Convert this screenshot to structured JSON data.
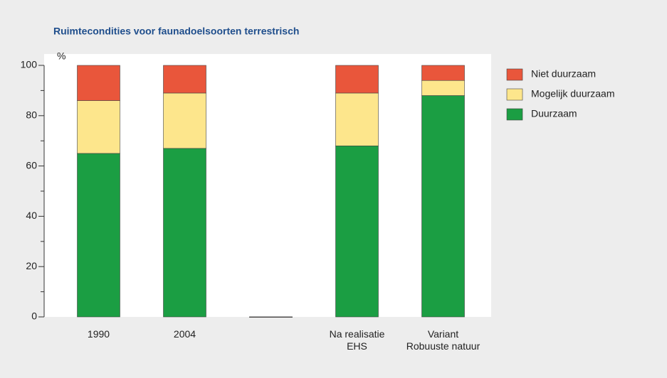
{
  "chart_data": {
    "type": "stacked_bar",
    "title": "Ruimtecondities voor faunadoelsoorten terrestrisch",
    "y_label": "%",
    "categories": [
      "1990",
      "2004",
      null,
      "Na realisatie\nEHS",
      "Variant\nRobuuste natuur"
    ],
    "series": [
      {
        "name": "Duurzaam",
        "color": "#1b9e43",
        "values": [
          65,
          67,
          0,
          68,
          88
        ]
      },
      {
        "name": "Mogelijk duurzaam",
        "color": "#fde68c",
        "values": [
          21,
          22,
          0,
          21,
          6
        ]
      },
      {
        "name": "Niet duurzaam",
        "color": "#e9563b",
        "values": [
          14,
          11,
          0,
          11,
          6
        ]
      }
    ],
    "ylim": [
      0,
      100
    ],
    "yticks": [
      0,
      20,
      40,
      60,
      80,
      100
    ],
    "minor_yticks": [
      10,
      30,
      50,
      70,
      90
    ],
    "legend": "right"
  }
}
